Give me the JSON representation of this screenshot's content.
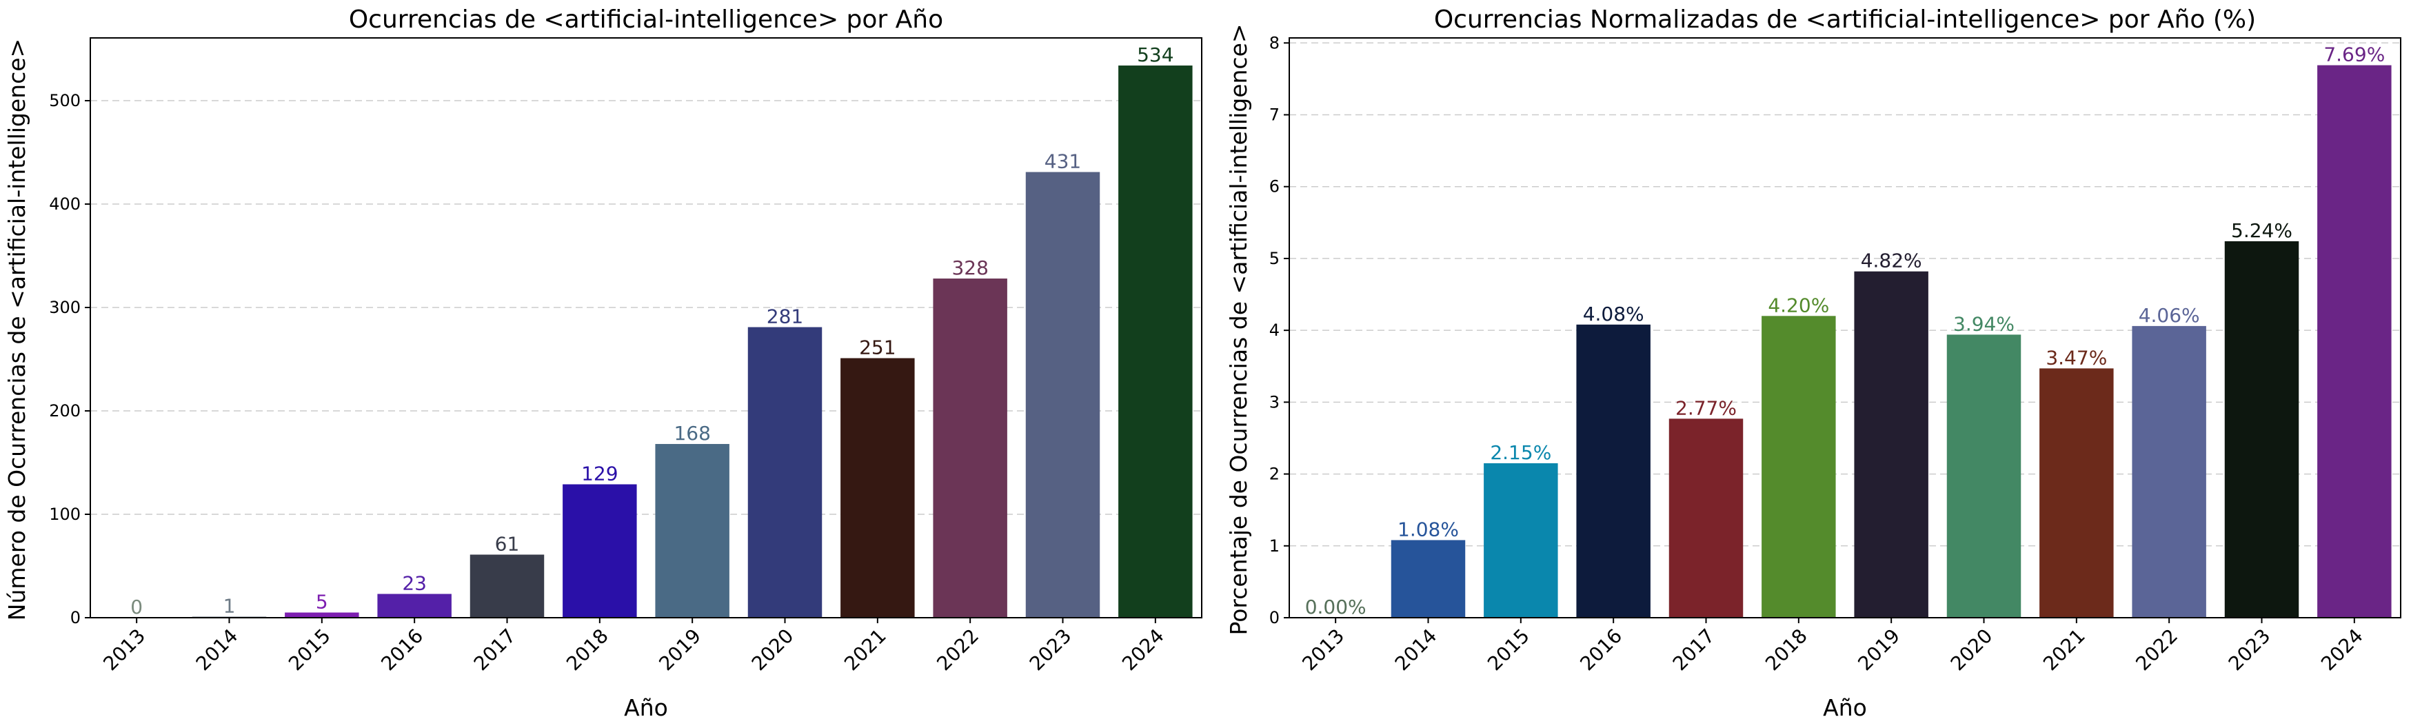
{
  "chart_data": [
    {
      "type": "bar",
      "title": "Ocurrencias de <artificial-intelligence> por Año",
      "xlabel": "Año",
      "ylabel": "Número de Ocurrencias de <artificial-intelligence>",
      "categories": [
        "2013",
        "2014",
        "2015",
        "2016",
        "2017",
        "2018",
        "2019",
        "2020",
        "2021",
        "2022",
        "2023",
        "2024"
      ],
      "values": [
        0,
        1,
        5,
        23,
        61,
        129,
        168,
        281,
        251,
        328,
        431,
        534
      ],
      "value_labels": [
        "0",
        "1",
        "5",
        "23",
        "61",
        "129",
        "168",
        "281",
        "251",
        "328",
        "431",
        "534"
      ],
      "colors": [
        "#7a8a7d",
        "#6d7a86",
        "#7d1fb0",
        "#5420a8",
        "#383c4a",
        "#2a10a8",
        "#4a6a85",
        "#333b7a",
        "#351812",
        "#6b3556",
        "#566183",
        "#123f1d"
      ],
      "yticks": [
        0,
        100,
        200,
        300,
        400,
        500
      ],
      "ylim": [
        0,
        560.7
      ],
      "grid": true
    },
    {
      "type": "bar",
      "title": "Ocurrencias Normalizadas de <artificial-intelligence> por Año (%)",
      "xlabel": "Año",
      "ylabel": "Porcentaje de Ocurrencias de <artificial-intelligence>",
      "categories": [
        "2013",
        "2014",
        "2015",
        "2016",
        "2017",
        "2018",
        "2019",
        "2020",
        "2021",
        "2022",
        "2023",
        "2024"
      ],
      "values": [
        0.0,
        1.08,
        2.15,
        4.08,
        2.77,
        4.2,
        4.82,
        3.94,
        3.47,
        4.06,
        5.24,
        7.69
      ],
      "value_labels": [
        "0.00%",
        "1.08%",
        "2.15%",
        "4.08%",
        "2.77%",
        "4.20%",
        "4.82%",
        "3.94%",
        "3.47%",
        "4.06%",
        "5.24%",
        "7.69%"
      ],
      "colors": [
        "#56705a",
        "#26549a",
        "#0a87ad",
        "#0d1b3c",
        "#7b232a",
        "#548b2c",
        "#231e30",
        "#438864",
        "#6c2a1b",
        "#5b6597",
        "#0d170f",
        "#6a2586"
      ],
      "yticks": [
        0,
        1,
        2,
        3,
        4,
        5,
        6,
        7,
        8
      ],
      "ylim": [
        0,
        8.07
      ],
      "grid": true
    }
  ]
}
